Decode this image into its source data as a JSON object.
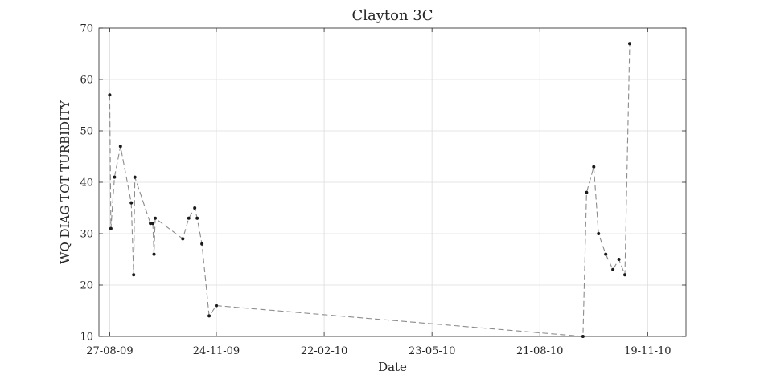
{
  "chart_data": {
    "type": "line",
    "title": "Clayton 3C",
    "xlabel": "Date",
    "ylabel": "WQ DIAG TOT TURBIDITY",
    "x_axis_type": "date",
    "xlim": [
      "2009-08-18",
      "2010-12-21"
    ],
    "ylim": [
      10,
      70
    ],
    "grid": true,
    "x_ticks": [
      {
        "date": "2009-08-27",
        "label": "27-08-09"
      },
      {
        "date": "2009-11-24",
        "label": "24-11-09"
      },
      {
        "date": "2010-02-22",
        "label": "22-02-10"
      },
      {
        "date": "2010-05-23",
        "label": "23-05-10"
      },
      {
        "date": "2010-08-21",
        "label": "21-08-10"
      },
      {
        "date": "2010-11-19",
        "label": "19-11-10"
      }
    ],
    "y_ticks": [
      10,
      20,
      30,
      40,
      50,
      60,
      70
    ],
    "series": [
      {
        "line_style": "dashed",
        "line_color": "#8c8c8c",
        "marker_color": "#1a1a1a",
        "points": [
          {
            "x": "2009-08-27",
            "y": 57
          },
          {
            "x": "2009-08-28",
            "y": 31
          },
          {
            "x": "2009-08-31",
            "y": 41
          },
          {
            "x": "2009-09-05",
            "y": 47
          },
          {
            "x": "2009-09-14",
            "y": 36
          },
          {
            "x": "2009-09-16",
            "y": 22
          },
          {
            "x": "2009-09-17",
            "y": 41
          },
          {
            "x": "2009-09-30",
            "y": 32
          },
          {
            "x": "2009-10-02",
            "y": 32
          },
          {
            "x": "2009-10-03",
            "y": 26
          },
          {
            "x": "2009-10-04",
            "y": 33
          },
          {
            "x": "2009-10-27",
            "y": 29
          },
          {
            "x": "2009-11-01",
            "y": 33
          },
          {
            "x": "2009-11-06",
            "y": 35
          },
          {
            "x": "2009-11-08",
            "y": 33
          },
          {
            "x": "2009-11-12",
            "y": 28
          },
          {
            "x": "2009-11-18",
            "y": 14
          },
          {
            "x": "2009-11-24",
            "y": 16
          },
          {
            "x": "2010-09-26",
            "y": 10
          },
          {
            "x": "2010-09-29",
            "y": 38
          },
          {
            "x": "2010-10-05",
            "y": 43
          },
          {
            "x": "2010-10-09",
            "y": 30
          },
          {
            "x": "2010-10-15",
            "y": 26
          },
          {
            "x": "2010-10-21",
            "y": 23
          },
          {
            "x": "2010-10-26",
            "y": 25
          },
          {
            "x": "2010-10-31",
            "y": 22
          },
          {
            "x": "2010-11-04",
            "y": 67
          }
        ]
      }
    ]
  }
}
